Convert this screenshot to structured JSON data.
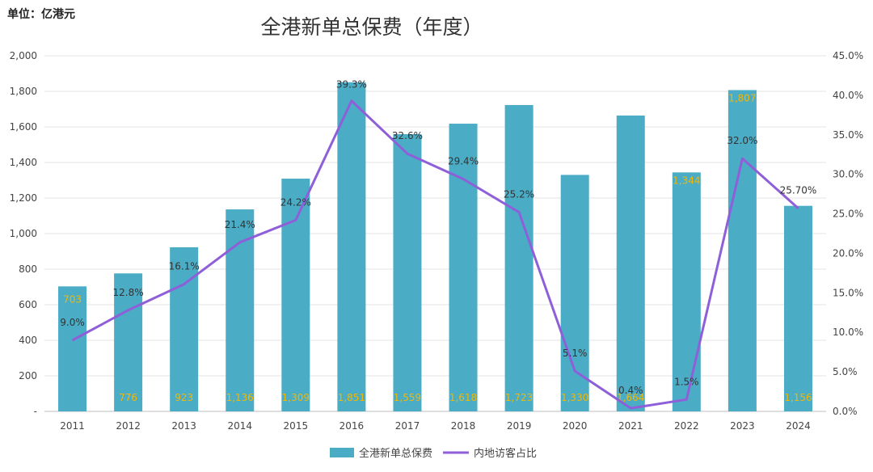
{
  "unit": "单位：亿港元",
  "chart_data": {
    "type": "bar",
    "title": "全港新单总保费（年度）",
    "categories": [
      "2011",
      "2012",
      "2013",
      "2014",
      "2015",
      "2016",
      "2017",
      "2018",
      "2019",
      "2020",
      "2021",
      "2022",
      "2023",
      "2024"
    ],
    "series": [
      {
        "name": "全港新单总保费",
        "type": "bar",
        "axis": "left",
        "color": "#4bacc6",
        "values": [
          703,
          776,
          923,
          1136,
          1309,
          1851,
          1559,
          1618,
          1723,
          1330,
          1664,
          1344,
          1807,
          1156
        ],
        "labels": [
          "703",
          "776",
          "923",
          "1,136",
          "1,309",
          "1,851",
          "1,559",
          "1,618",
          "1,723",
          "1,330",
          "1,664",
          "1,344",
          "1,807",
          "1,156"
        ]
      },
      {
        "name": "内地访客占比",
        "type": "line",
        "axis": "right",
        "color": "#8e5fd8",
        "values": [
          9.0,
          12.8,
          16.1,
          21.4,
          24.2,
          39.3,
          32.6,
          29.4,
          25.2,
          5.1,
          0.4,
          1.5,
          32.0,
          25.7
        ],
        "labels": [
          "9.0%",
          "12.8%",
          "16.1%",
          "21.4%",
          "24.2%",
          "39.3%",
          "32.6%",
          "29.4%",
          "25.2%",
          "5.1%",
          "0.4%",
          "1.5%",
          "32.0%",
          "25.70%"
        ]
      }
    ],
    "y_left": {
      "range": [
        0,
        2000
      ],
      "ticks": [
        0,
        200,
        400,
        600,
        800,
        1000,
        1200,
        1400,
        1600,
        1800,
        2000
      ],
      "tick_labels": [
        "-",
        "200",
        "400",
        "600",
        "800",
        "1,000",
        "1,200",
        "1,400",
        "1,600",
        "1,800",
        "2,000"
      ]
    },
    "y_right": {
      "range": [
        0,
        45
      ],
      "ticks": [
        0,
        5,
        10,
        15,
        20,
        25,
        30,
        35,
        40,
        45
      ],
      "tick_labels": [
        "0.0%",
        "5.0%",
        "10.0%",
        "15.0%",
        "20.0%",
        "25.0%",
        "30.0%",
        "35.0%",
        "40.0%",
        "45.0%"
      ]
    },
    "value_label_color": "#f2b705",
    "grid": true,
    "legend": "bottom"
  }
}
